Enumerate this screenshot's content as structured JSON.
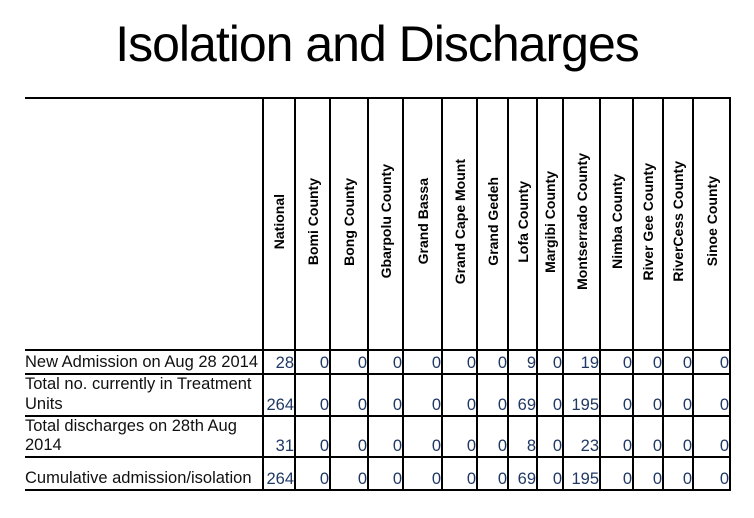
{
  "title": "Isolation and Discharges",
  "table": {
    "corner_label": "",
    "columns": [
      "National",
      "Bomi County",
      "Bong County",
      "Gbarpolu County",
      "Grand Bassa",
      "Grand Cape Mount",
      "Grand Gedeh",
      "Lofa County",
      "Margibi County",
      "Montserrado County",
      "Nimba County",
      "River Gee County",
      "RiverCess County",
      "Sinoe County"
    ],
    "rows": [
      {
        "label": "New Admission on Aug 28 2014",
        "values": [
          "28",
          "0",
          "0",
          "0",
          "0",
          "0",
          "0",
          "9",
          "0",
          "19",
          "0",
          "0",
          "0",
          "0"
        ]
      },
      {
        "label": "Total no. currently in Treatment Units",
        "values": [
          "264",
          "0",
          "0",
          "0",
          "0",
          "0",
          "0",
          "69",
          "0",
          "195",
          "0",
          "0",
          "0",
          "0"
        ]
      },
      {
        "label": "Total discharges on 28th Aug 2014",
        "values": [
          "31",
          "0",
          "0",
          "0",
          "0",
          "0",
          "0",
          "8",
          "0",
          "23",
          "0",
          "0",
          "0",
          "0"
        ]
      },
      {
        "label": "Cumulative admission/isolation",
        "values": [
          "264",
          "0",
          "0",
          "0",
          "0",
          "0",
          "0",
          "69",
          "0",
          "195",
          "0",
          "0",
          "0",
          "0"
        ]
      }
    ]
  },
  "colors": {
    "background": "#ffffff",
    "border": "#000000",
    "title_text": "#000000",
    "header_text": "#000000",
    "label_text": "#111111",
    "number_text": "#1F3864"
  }
}
